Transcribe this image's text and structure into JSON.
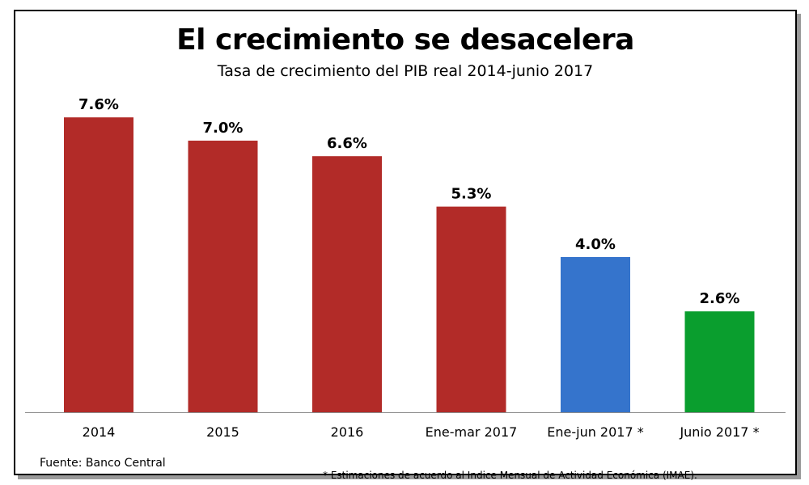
{
  "chart_data": {
    "type": "bar",
    "title": "El crecimiento se desacelera",
    "subtitle": "Tasa de crecimiento del PIB real 2014-junio 2017",
    "categories": [
      "2014",
      "2015",
      "2016",
      "Ene-mar 2017",
      "Ene-jun 2017 *",
      "Junio 2017 *"
    ],
    "values": [
      7.6,
      7.0,
      6.6,
      5.3,
      4.0,
      2.6
    ],
    "data_labels": [
      "7.6%",
      "7.0%",
      "6.6%",
      "5.3%",
      "4.0%",
      "2.6%"
    ],
    "bar_colors": [
      "#b22b28",
      "#b22b28",
      "#b22b28",
      "#b22b28",
      "#3574cc",
      "#0a9e2e"
    ],
    "xlabel": "",
    "ylabel": "",
    "ylim": [
      0,
      8.5
    ],
    "grid": false,
    "legend": "none"
  },
  "footer": {
    "source": "Fuente: Banco Central",
    "note": "* Estimaciones de acuerdo al Indice Mensual de Actividad Económica (IMAE)."
  }
}
